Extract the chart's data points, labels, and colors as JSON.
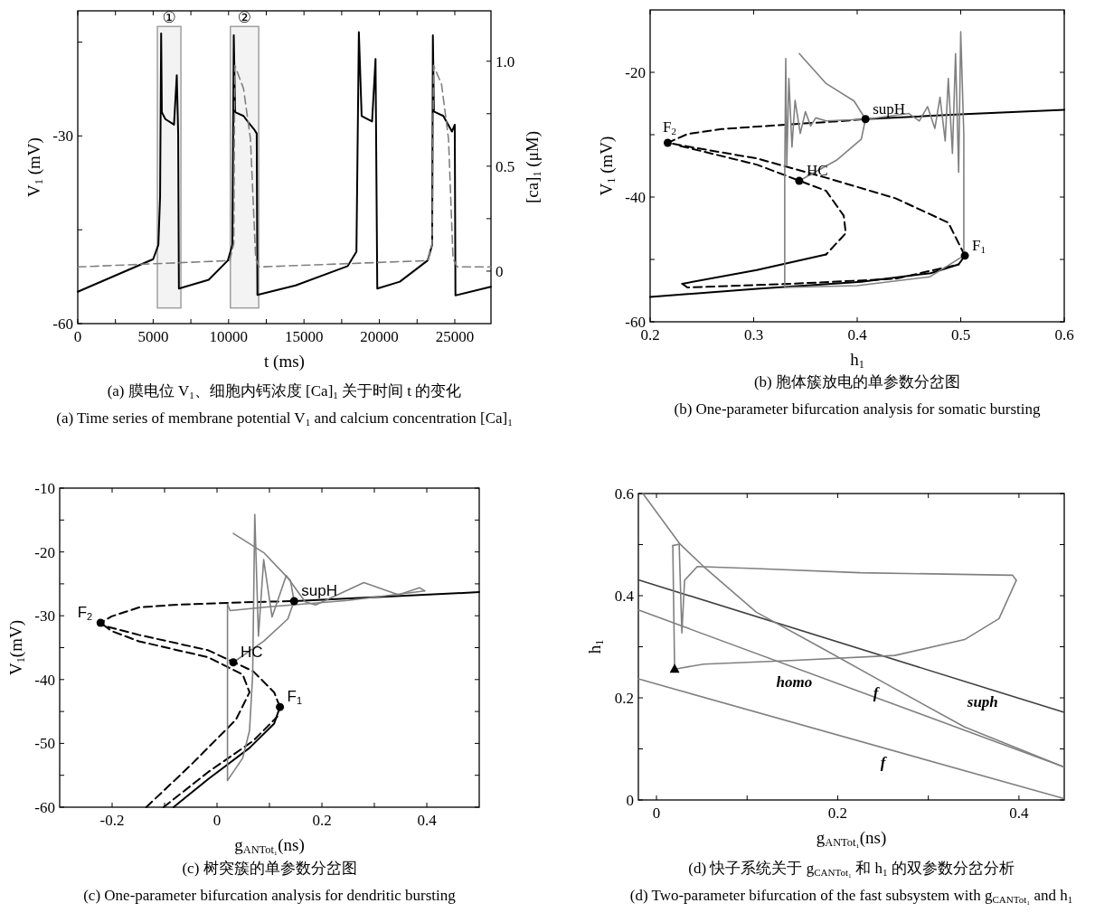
{
  "chart_data": [
    {
      "type": "line",
      "title": "(a) 膜电位 V$_{1}$、细胞内钙浓度 [Ca]$_{1}$ 关于时间 t 的变化",
      "subtitle": "(a) Time series of membrane potential V$_{1}$ and calcium concentration [Ca]$_{1}$",
      "xlabel": "t (ms)",
      "ylabel": "V$_{1}$ (mV)",
      "y2label": "[ca]$_{1}$ (μM)",
      "xlim": [
        0,
        27400
      ],
      "ylim": [
        -60,
        -10
      ],
      "y2lim": [
        -0.25,
        1.24
      ],
      "xticks": [
        0,
        {
          "value": 2500,
          "label": null
        },
        5000,
        {
          "value": 7500,
          "label": null
        },
        10000,
        {
          "value": 12500,
          "label": null
        },
        15000,
        {
          "value": 17500,
          "label": null
        },
        20000,
        {
          "value": 22500,
          "label": null
        },
        25000
      ],
      "yticks": [
        -60,
        {
          "value": -45,
          "label": null
        },
        -30,
        {
          "value": -15,
          "label": null
        }
      ],
      "y2ticks": [
        0,
        {
          "value": 0.25,
          "label": null
        },
        0.5,
        {
          "value": 0.75,
          "label": null
        },
        {
          "value": 1.0,
          "label": "1.0"
        }
      ],
      "series": [
        {
          "color": "#000000",
          "line_style": "solid",
          "x": [
            0,
            5000,
            5345,
            5460,
            5530,
            5575,
            5806,
            6382,
            6566,
            6658,
            6705,
            8686,
            9953,
            10253,
            10345,
            10437,
            10990,
            11335,
            11681,
            11866,
            11912,
            14446,
            17902,
            18478,
            18639,
            18823,
            19515,
            19745,
            19860,
            21358,
            23201,
            23501,
            23547,
            23616,
            24238,
            24814,
            24998,
            25044,
            27394
          ],
          "values": [
            -54.9,
            -49.7,
            -47.4,
            -39.6,
            -13.6,
            -26.2,
            -27.3,
            -28.2,
            -20.3,
            -29.6,
            -54.4,
            -53.0,
            -49.9,
            -47.4,
            -13.9,
            -26.2,
            -26.8,
            -27.9,
            -28.9,
            -29.6,
            -55.4,
            -53.9,
            -50.8,
            -48.5,
            -13.4,
            -26.8,
            -27.7,
            -17.7,
            -54.4,
            -53.3,
            -49.9,
            -47.4,
            -13.9,
            -26.1,
            -26.8,
            -29.3,
            -28.2,
            -55.5,
            -54.1
          ]
        },
        {
          "color": "#808080",
          "line_style": "dashed",
          "axis": "y2",
          "x": [
            0,
            10069,
            10345,
            10414,
            10990,
            11451,
            11797,
            12027,
            23201,
            23501,
            23593,
            24123,
            24584,
            24883,
            25160,
            27394
          ],
          "values": [
            0.02,
            0.05,
            0.13,
            0.98,
            0.87,
            0.63,
            0.06,
            0.02,
            0.05,
            0.13,
            0.98,
            0.89,
            0.63,
            0.06,
            0.02,
            0.02
          ]
        }
      ],
      "bands": [
        {
          "axis": "x",
          "from": 5280,
          "to": 6840,
          "label": "①",
          "color": "#a0a0a0"
        },
        {
          "axis": "x",
          "from": 10120,
          "to": 12000,
          "label": "②",
          "color": "#a0a0a0"
        }
      ]
    },
    {
      "type": "line",
      "title": "(b) 胞体簇放电的单参数分岔图",
      "subtitle": "(b) One-parameter bifurcation analysis for somatic bursting",
      "xlabel": "h$_{1}$",
      "ylabel": "V$_{1}$ (mV)",
      "xlim": [
        0.2,
        0.6
      ],
      "ylim": [
        -60,
        -10
      ],
      "xticks": [
        0.2,
        0.3,
        0.4,
        0.5,
        0.6
      ],
      "yticks": [
        -60,
        {
          "value": -50,
          "label": null
        },
        -40,
        {
          "value": -30,
          "label": null
        },
        -20
      ],
      "series": [
        {
          "type": "line",
          "color": "#000000",
          "line_style": "solid",
          "x": [
            0.2,
            0.303,
            0.404,
            0.471,
            0.498,
            0.504
          ],
          "values": [
            -56.0,
            -54.7,
            -53.6,
            -52.2,
            -50.8,
            -49.4
          ]
        },
        {
          "type": "line",
          "color": "#000000",
          "line_style": "dashed",
          "x": [
            0.504,
            0.488,
            0.437,
            0.37,
            0.303,
            0.243,
            0.217,
            0.236,
            0.269,
            0.33,
            0.387,
            0.408
          ],
          "values": [
            -49.4,
            -44.1,
            -40.2,
            -36.9,
            -33.8,
            -32.1,
            -31.3,
            -29.9,
            -29.1,
            -28.4,
            -27.8,
            -27.5
          ]
        },
        {
          "type": "line",
          "color": "#000000",
          "line_style": "solid",
          "x": [
            0.408,
            0.504,
            0.6
          ],
          "values": [
            -27.5,
            -26.7,
            -26.0
          ]
        },
        {
          "type": "line",
          "color": "#000000",
          "line_style": "dashed",
          "x": [
            0.229,
            0.303,
            0.37,
            0.387,
            0.389,
            0.37
          ],
          "values": [
            -31.8,
            -34.8,
            -39.0,
            -43.0,
            -45.8,
            -49.2
          ]
        },
        {
          "type": "line",
          "color": "#000000",
          "line_style": "solid",
          "x": [
            0.37,
            0.303,
            0.231
          ],
          "values": [
            -49.2,
            -51.7,
            -53.9
          ]
        },
        {
          "type": "line",
          "color": "#000000",
          "line_style": "dashed",
          "x": [
            0.231,
            0.236,
            0.337,
            0.437,
            0.498
          ],
          "values": [
            -53.9,
            -54.5,
            -53.9,
            -53.1,
            -50.8
          ]
        },
        {
          "color": "#808080",
          "line_style": "solid",
          "x": [
            0.503,
            0.503,
            0.5,
            0.498,
            0.495,
            0.492,
            0.488,
            0.485,
            0.48,
            0.475,
            0.468,
            0.46,
            0.45,
            0.41,
            0.37,
            0.36,
            0.355,
            0.35,
            0.345,
            0.34,
            0.337,
            0.334,
            0.332,
            0.331,
            0.33,
            0.33
          ],
          "values": [
            -49.4,
            -30,
            -13.5,
            -36,
            -17,
            -33,
            -21,
            -31,
            -24,
            -29,
            -25.5,
            -27.8,
            -26.6,
            -27.5,
            -27.8,
            -27.3,
            -28.6,
            -26.3,
            -29.8,
            -24.5,
            -32,
            -21,
            -35,
            -17.8,
            -36.3,
            -54.5
          ]
        },
        {
          "color": "#808080",
          "line_style": "solid",
          "x": [
            0.33,
            0.4,
            0.47,
            0.503
          ],
          "values": [
            -54.5,
            -54.2,
            -52.8,
            -49.4
          ]
        },
        {
          "color": "#808080",
          "line_style": "solid",
          "x": [
            0.344,
            0.37,
            0.397,
            0.408
          ],
          "values": [
            -17.0,
            -21.8,
            -24.6,
            -27.5
          ]
        },
        {
          "color": "#808080",
          "line_style": "solid",
          "x": [
            0.408,
            0.404,
            0.38,
            0.344
          ],
          "values": [
            -27.5,
            -30.7,
            -34.1,
            -37.4
          ]
        },
        {
          "type": "scatter",
          "color": "#000000",
          "marker": "circle",
          "x": [
            0.217,
            0.344,
            0.408,
            0.504
          ],
          "values": [
            -31.3,
            -37.4,
            -27.5,
            -49.4
          ]
        }
      ],
      "annotations": [
        {
          "text": "F$_{2}$",
          "x": 0.217,
          "y": -31.3
        },
        {
          "text": "HC",
          "x": 0.344,
          "y": -37.4
        },
        {
          "text": "supH",
          "x": 0.408,
          "y": -27.5
        },
        {
          "text": "F$_{1}$",
          "x": 0.504,
          "y": -49.4
        }
      ]
    },
    {
      "type": "line",
      "title": "(c) 树突簇的单参数分岔图",
      "subtitle": "(c) One-parameter bifurcation analysis for dendritic bursting",
      "xlabel": "g$_{ANTot₁}$(ns)",
      "ylabel": "V$_{1}$(mV)",
      "xlim": [
        -0.3,
        0.5
      ],
      "ylim": [
        -60,
        -10
      ],
      "xticks": [
        -0.2,
        {
          "value": -0.1,
          "label": null
        },
        0,
        {
          "value": 0.1,
          "label": null
        },
        0.2,
        {
          "value": 0.3,
          "label": null
        },
        0.4
      ],
      "yticks": [
        -60,
        {
          "value": -55,
          "label": null
        },
        -50,
        {
          "value": -45,
          "label": null
        },
        -40,
        {
          "value": -35,
          "label": null
        },
        -30,
        {
          "value": -25,
          "label": null
        },
        -20,
        {
          "value": -15,
          "label": null
        },
        -10
      ],
      "series": [
        {
          "type": "line",
          "color": "#000000",
          "line_style": "solid",
          "x": [
            -0.083,
            -0.017,
            0.062,
            0.109,
            0.12
          ],
          "values": [
            -60,
            -55.6,
            -50.7,
            -46.9,
            -44.3
          ]
        },
        {
          "type": "line",
          "color": "#000000",
          "line_style": "dashed",
          "x": [
            0.12,
            0.109,
            0.069,
            -0.017,
            -0.149,
            -0.215,
            -0.222,
            -0.201,
            -0.149,
            -0.083,
            0.049,
            0.147
          ],
          "values": [
            -44.3,
            -42.0,
            -38.7,
            -35.4,
            -33.0,
            -31.6,
            -31.1,
            -30.1,
            -28.7,
            -28.3,
            -27.9,
            -27.7
          ]
        },
        {
          "type": "line",
          "color": "#000000",
          "line_style": "solid",
          "x": [
            0.147,
            0.5
          ],
          "values": [
            -27.7,
            -26.3
          ]
        },
        {
          "type": "line",
          "color": "#000000",
          "line_style": "dashed",
          "x": [
            -0.135,
            -0.05,
            0.036,
            0.062,
            0.049,
            -0.017,
            -0.149,
            -0.201,
            -0.222
          ],
          "values": [
            -60,
            -53.4,
            -46.3,
            -42.0,
            -39.2,
            -36.5,
            -34.0,
            -32.4,
            -31.1
          ]
        },
        {
          "type": "line",
          "color": "#000000",
          "line_style": "dashed",
          "x": [
            -0.102,
            -0.017,
            0.069,
            0.115
          ],
          "values": [
            -60,
            -54.5,
            -49.6,
            -45.8
          ]
        },
        {
          "color": "#808080",
          "line_style": "solid",
          "x": [
            0.02,
            0.02
          ],
          "values": [
            -28.2,
            -55.8
          ]
        },
        {
          "color": "#808080",
          "line_style": "solid",
          "x": [
            0.02,
            0.049,
            0.062,
            0.068,
            0.072,
            0.079,
            0.089,
            0.105,
            0.132,
            0.168,
            0.188,
            0.28,
            0.346,
            0.386,
            0.396
          ],
          "values": [
            -55.8,
            -52.3,
            -48.0,
            -39.2,
            -14.1,
            -33.2,
            -21.2,
            -30.2,
            -23.7,
            -27.8,
            -28.3,
            -24.8,
            -26.7,
            -25.6,
            -26.1
          ]
        },
        {
          "color": "#808080",
          "line_style": "solid",
          "x": [
            0.396,
            0.25,
            0.1,
            0.025,
            0.02
          ],
          "values": [
            -26.1,
            -27.6,
            -28.6,
            -29.2,
            -28.2
          ]
        },
        {
          "color": "#808080",
          "line_style": "solid",
          "x": [
            0.031,
            0.089,
            0.14,
            0.147
          ],
          "values": [
            -17.1,
            -20.1,
            -24.5,
            -27.7
          ]
        },
        {
          "color": "#808080",
          "line_style": "solid",
          "x": [
            0.147,
            0.135,
            0.089,
            0.031
          ],
          "values": [
            -27.7,
            -30.5,
            -34.0,
            -37.3
          ]
        },
        {
          "type": "scatter",
          "color": "#000000",
          "marker": "circle",
          "x": [
            -0.222,
            0.031,
            0.147,
            0.12
          ],
          "values": [
            -31.1,
            -37.3,
            -27.7,
            -44.3
          ]
        }
      ],
      "annotations": [
        {
          "text": "F$_{2}$",
          "x": -0.222,
          "y": -31.1
        },
        {
          "text": "HC",
          "x": 0.031,
          "y": -37.3
        },
        {
          "text": "supH",
          "x": 0.147,
          "y": -27.7
        },
        {
          "text": "F$_{1}$",
          "x": 0.12,
          "y": -44.3
        }
      ]
    },
    {
      "type": "line",
      "title": "(d) 快子系统关于 g$_{CANTot₁}$ 和 h$_{1}$ 的双参数分岔分析",
      "subtitle": "(d) Two-parameter bifurcation of the fast subsystem with g$_{CANTot₁}$ and h$_{1}$",
      "xlabel": "g$_{ANTot₁}$(ns)",
      "ylabel": "h$_{1}$",
      "xlim": [
        -0.02,
        0.45
      ],
      "ylim": [
        0,
        0.6
      ],
      "xticks": [
        0,
        {
          "value": 0.1,
          "label": null
        },
        0.2,
        {
          "value": 0.3,
          "label": null
        },
        0.4
      ],
      "yticks": [
        0,
        {
          "value": 0.1,
          "label": null
        },
        0.2,
        {
          "value": 0.3,
          "label": null
        },
        0.4,
        {
          "value": 0.5,
          "label": null
        },
        0.6
      ],
      "series": [
        {
          "name": "suph",
          "color": "#404040",
          "line_style": "solid",
          "x": [
            -0.02,
            0.449
          ],
          "values": [
            0.431,
            0.172
          ]
        },
        {
          "name": "homo",
          "color": "#808080",
          "line_style": "solid",
          "x": [
            -0.02,
            0.449
          ],
          "values": [
            0.372,
            0.065
          ]
        },
        {
          "name": "f",
          "color": "#808080",
          "line_style": "solid",
          "x": [
            -0.02,
            0.449
          ],
          "values": [
            0.237,
            0.003
          ]
        },
        {
          "name": "f",
          "color": "#808080",
          "line_style": "solid",
          "x": [
            -0.015,
            0.026,
            0.052,
            0.11,
            0.187,
            0.263,
            0.34,
            0.449
          ],
          "values": [
            0.6,
            0.501,
            0.457,
            0.368,
            0.293,
            0.218,
            0.143,
            0.065
          ]
        },
        {
          "color": "#808080",
          "line_style": "solid",
          "x": [
            0.02,
            0.018
          ],
          "values": [
            0.256,
            0.498
          ]
        },
        {
          "color": "#808080",
          "line_style": "solid",
          "x": [
            0.018,
            0.025,
            0.028,
            0.031,
            0.045,
            0.11,
            0.225,
            0.393,
            0.397
          ],
          "values": [
            0.498,
            0.501,
            0.327,
            0.43,
            0.457,
            0.453,
            0.445,
            0.44,
            0.43
          ]
        },
        {
          "color": "#808080",
          "line_style": "solid",
          "x": [
            0.397,
            0.378,
            0.34,
            0.263,
            0.148,
            0.052,
            0.026,
            0.02
          ],
          "values": [
            0.43,
            0.355,
            0.314,
            0.283,
            0.273,
            0.266,
            0.258,
            0.256
          ]
        },
        {
          "type": "scatter",
          "color": "#000000",
          "marker": "triangle",
          "x": [
            0.02
          ],
          "values": [
            0.256
          ]
        }
      ]
    }
  ]
}
